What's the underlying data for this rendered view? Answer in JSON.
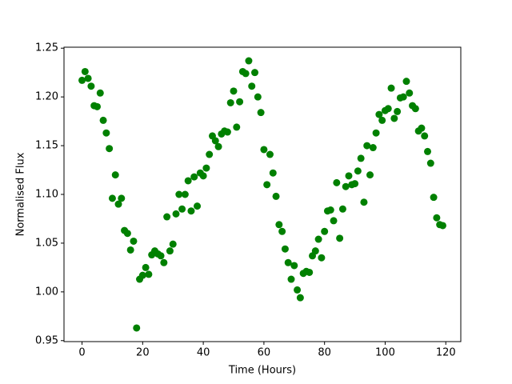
{
  "chart_data": {
    "type": "scatter",
    "x_label": "Time (Hours)",
    "y_label": "Normalised Flux",
    "color": "#008000",
    "x": [
      0,
      1,
      2,
      3,
      4,
      5,
      6,
      7,
      8,
      9,
      10,
      11,
      12,
      13,
      14,
      15,
      16,
      17,
      18,
      19,
      20,
      21,
      22,
      23,
      24,
      25,
      26,
      27,
      28,
      29,
      30,
      31,
      32,
      33,
      34,
      35,
      36,
      37,
      38,
      39,
      40,
      41,
      42,
      43,
      44,
      45,
      46,
      47,
      48,
      49,
      50,
      51,
      52,
      53,
      54,
      55,
      56,
      57,
      58,
      59,
      60,
      61,
      62,
      63,
      64,
      65,
      66,
      67,
      68,
      69,
      70,
      71,
      72,
      73,
      74,
      75,
      76,
      77,
      78,
      79,
      80,
      81,
      82,
      83,
      84,
      85,
      86,
      87,
      88,
      89,
      90,
      91,
      92,
      93,
      94,
      95,
      96,
      97,
      98,
      99,
      100,
      101,
      102,
      103,
      104,
      105,
      106,
      107,
      108,
      109,
      110,
      111,
      112,
      113,
      114,
      115,
      116,
      117,
      118,
      119
    ],
    "values": [
      1.217,
      1.226,
      1.219,
      1.211,
      1.191,
      1.19,
      1.204,
      1.176,
      1.163,
      1.147,
      1.096,
      1.12,
      1.09,
      1.096,
      1.063,
      1.06,
      1.043,
      1.052,
      0.963,
      1.013,
      1.017,
      1.025,
      1.018,
      1.038,
      1.042,
      1.039,
      1.037,
      1.03,
      1.077,
      1.042,
      1.049,
      1.08,
      1.1,
      1.085,
      1.1,
      1.114,
      1.083,
      1.118,
      1.088,
      1.122,
      1.119,
      1.127,
      1.141,
      1.16,
      1.155,
      1.149,
      1.162,
      1.165,
      1.164,
      1.194,
      1.206,
      1.169,
      1.195,
      1.226,
      1.224,
      1.237,
      1.211,
      1.225,
      1.2,
      1.184,
      1.146,
      1.11,
      1.141,
      1.122,
      1.098,
      1.069,
      1.062,
      1.044,
      1.03,
      1.013,
      1.027,
      1.002,
      0.994,
      1.019,
      1.021,
      1.02,
      1.037,
      1.042,
      1.054,
      1.035,
      1.062,
      1.083,
      1.084,
      1.073,
      1.112,
      1.055,
      1.085,
      1.108,
      1.119,
      1.11,
      1.111,
      1.124,
      1.137,
      1.092,
      1.15,
      1.12,
      1.148,
      1.163,
      1.182,
      1.176,
      1.186,
      1.188,
      1.209,
      1.178,
      1.185,
      1.199,
      1.2,
      1.216,
      1.204,
      1.191,
      1.188,
      1.165,
      1.168,
      1.16,
      1.144,
      1.132,
      1.097,
      1.076,
      1.069,
      1.068
    ],
    "xlim": [
      -5.95,
      124.95
    ],
    "xticks": [
      0,
      20,
      40,
      60,
      80,
      100,
      120
    ],
    "ylim": [
      0.949,
      1.251
    ],
    "yticks": [
      0.95,
      {
        "value": 1.0,
        "label": "1.00"
      },
      1.05,
      {
        "value": 1.1,
        "label": "1.10"
      },
      1.15,
      {
        "value": 1.2,
        "label": "1.20"
      },
      1.25
    ]
  }
}
